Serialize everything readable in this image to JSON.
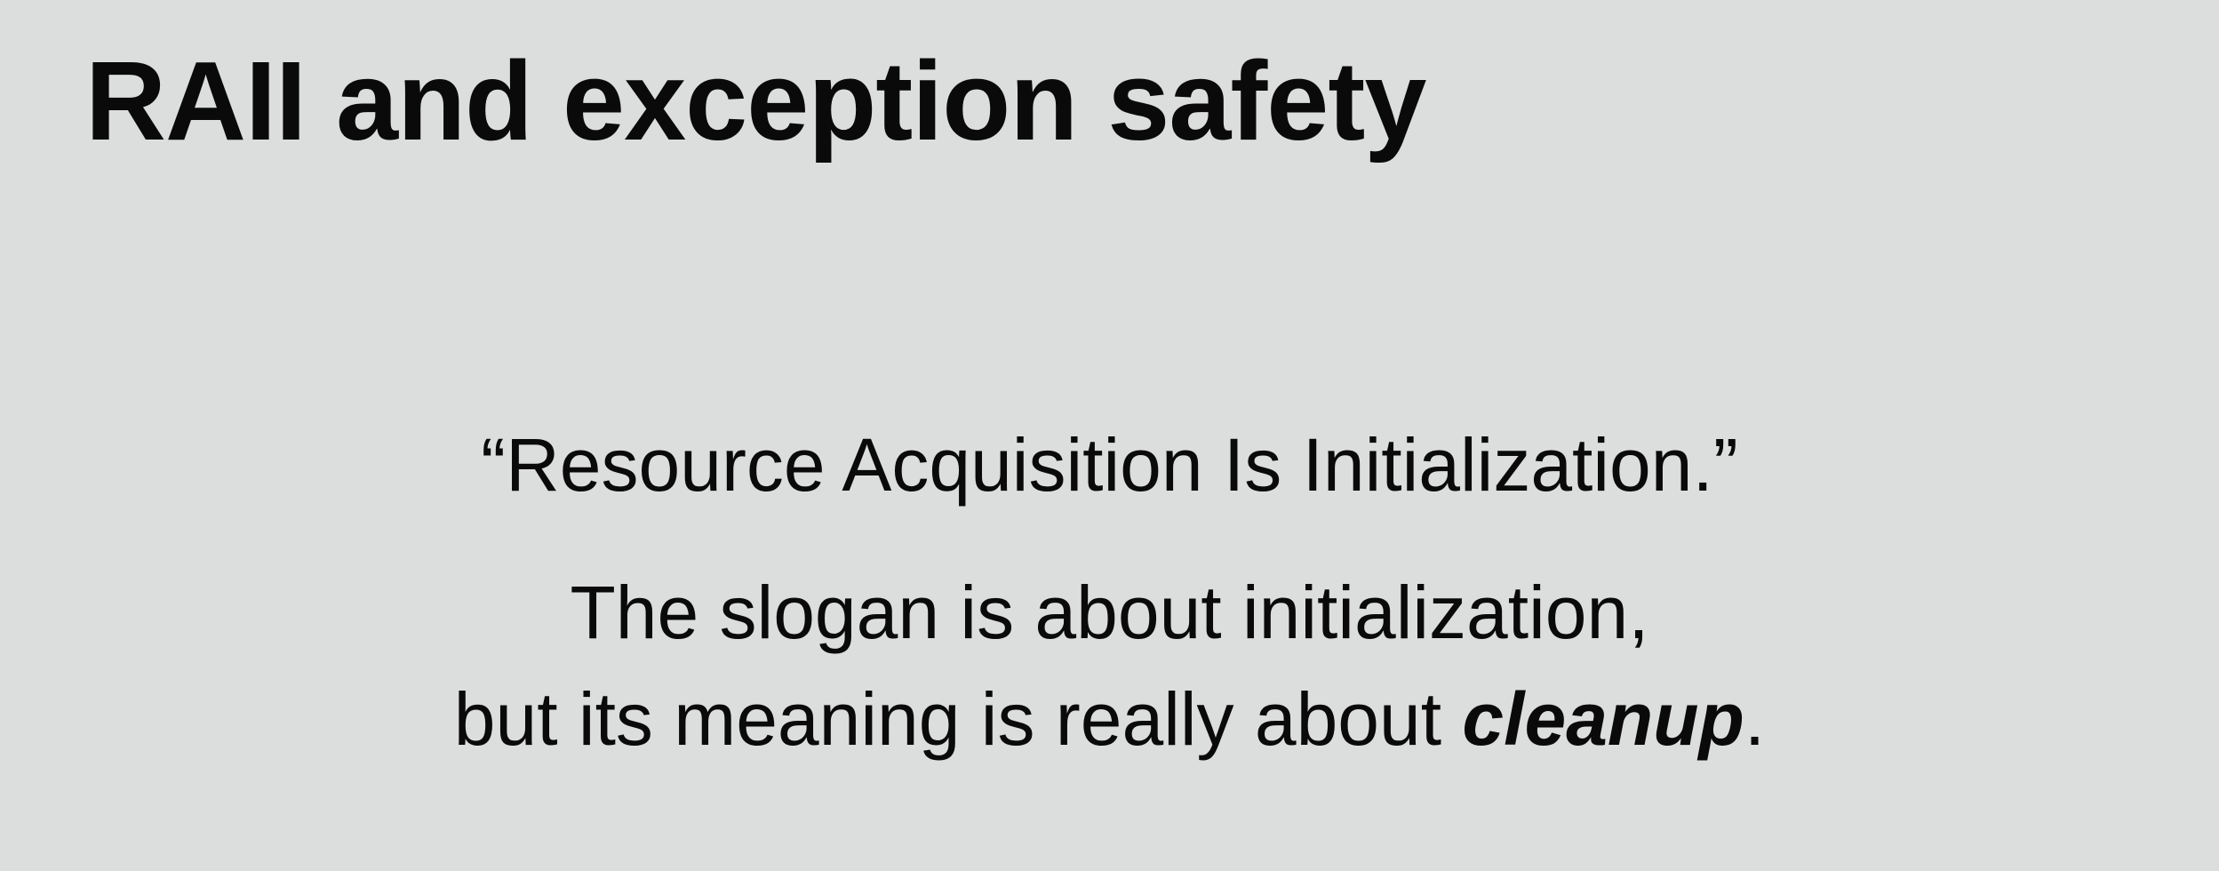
{
  "slide": {
    "title": "RAII and exception safety",
    "quote": "“Resource Acquisition Is Initialization.”",
    "line1": "The slogan is about initialization,",
    "line2_prefix": "but its meaning is really about ",
    "line2_emphasis": "cleanup",
    "line2_suffix": "."
  }
}
